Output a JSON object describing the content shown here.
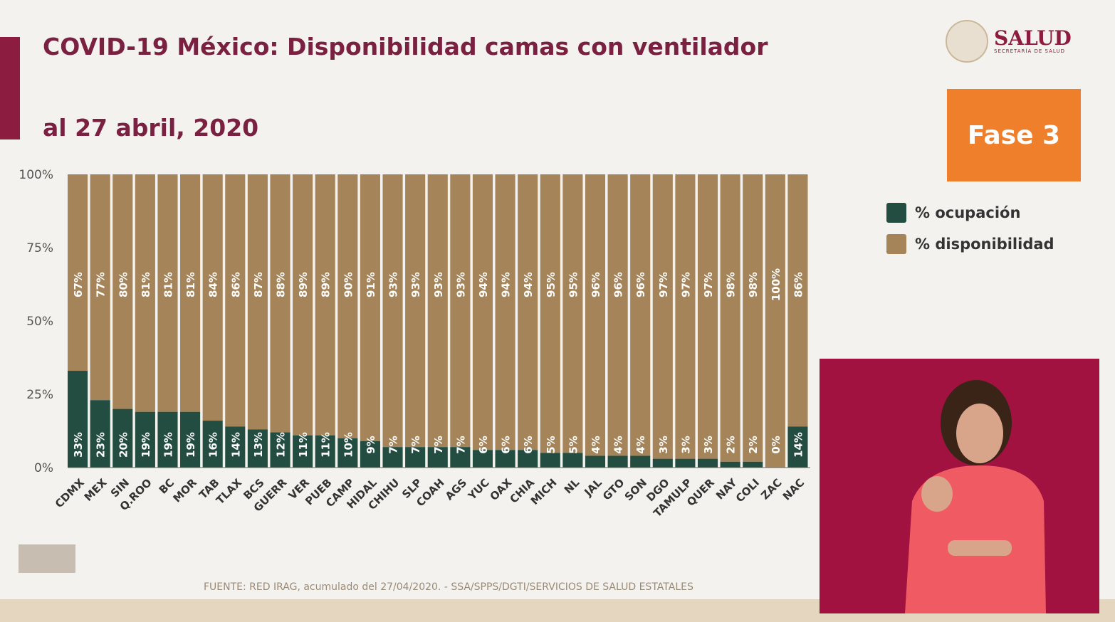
{
  "header": {
    "title": "COVID-19 México: Disponibilidad camas con ventilador",
    "subtitle": "al 27 abril, 2020"
  },
  "logo": {
    "name": "SALUD",
    "sub": "SECRETARÍA DE SALUD"
  },
  "badge": "Fase 3",
  "footer": "FUENTE: RED IRAG, acumulado del 27/04/2020. -  SSA/SPPS/DGTI/SERVICIOS DE SALUD ESTATALES",
  "colors": {
    "ocupacion": "#234d40",
    "disponibilidad": "#a5845a",
    "title": "#7a2142",
    "badge": "#ef7f2a"
  },
  "chart_data": {
    "type": "bar",
    "stacked": true,
    "title": "",
    "ylim": [
      0,
      100
    ],
    "yticks": [
      "0%",
      "25%",
      "50%",
      "75%",
      "100%"
    ],
    "legend_position": "right",
    "categories": [
      "CDMX",
      "MEX",
      "SIN",
      "Q.ROO",
      "BC",
      "MOR",
      "TAB",
      "TLAX",
      "BCS",
      "GUERR",
      "VER",
      "PUEB",
      "CAMP",
      "HIDAL",
      "CHIHU",
      "SLP",
      "COAH",
      "AGS",
      "YUC",
      "OAX",
      "CHIA",
      "MICH",
      "NL",
      "JAL",
      "GTO",
      "SON",
      "DGO",
      "TAMULP",
      "QUER",
      "NAY",
      "COLI",
      "ZAC",
      "NAC"
    ],
    "series": [
      {
        "name": "% ocupación",
        "color": "#234d40",
        "values": [
          33,
          23,
          20,
          19,
          19,
          19,
          16,
          14,
          13,
          12,
          11,
          11,
          10,
          9,
          7,
          7,
          7,
          7,
          6,
          6,
          6,
          5,
          5,
          4,
          4,
          4,
          3,
          3,
          3,
          2,
          2,
          0,
          14
        ]
      },
      {
        "name": "% disponibilidad",
        "color": "#a5845a",
        "values": [
          67,
          77,
          80,
          81,
          81,
          81,
          84,
          86,
          87,
          88,
          89,
          89,
          90,
          91,
          93,
          93,
          93,
          93,
          94,
          94,
          94,
          95,
          95,
          96,
          96,
          96,
          97,
          97,
          97,
          98,
          98,
          100,
          86
        ]
      }
    ]
  }
}
